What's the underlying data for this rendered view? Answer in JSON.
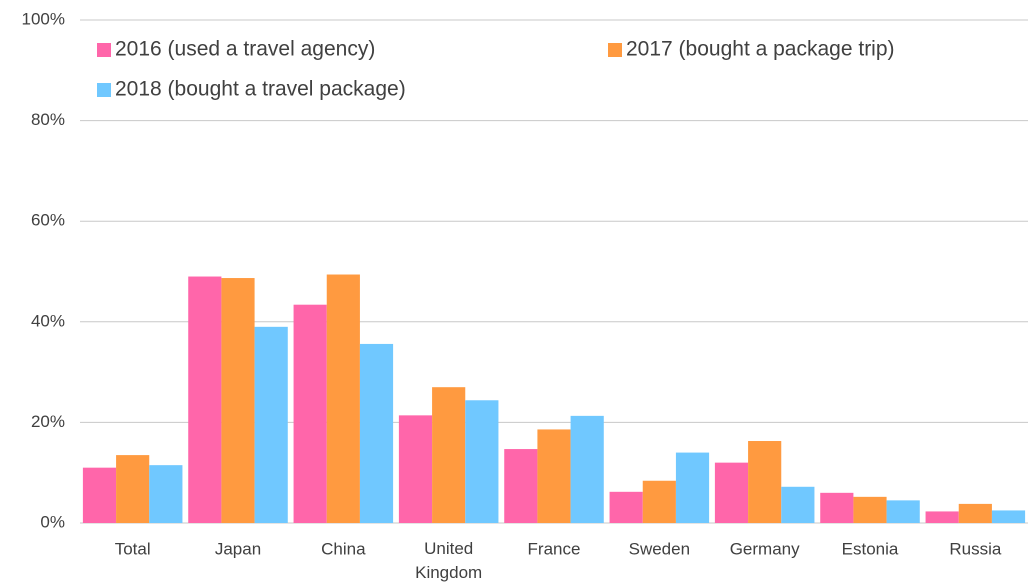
{
  "chart_data": {
    "type": "bar",
    "categories": [
      "Total",
      "Japan",
      "China",
      "United Kingdom",
      "France",
      "Sweden",
      "Germany",
      "Estonia",
      "Russia"
    ],
    "series": [
      {
        "name": "2016 (used a travel agency)",
        "color": "#ff66aa",
        "values": [
          11,
          49,
          43.4,
          21.4,
          14.7,
          6.2,
          12,
          6,
          2.3
        ]
      },
      {
        "name": "2017 (bought a package trip)",
        "color": "#ff9a40",
        "values": [
          13.5,
          48.7,
          49.4,
          27,
          18.6,
          8.4,
          16.3,
          5.2,
          3.8
        ]
      },
      {
        "name": "2018 (bought a travel package)",
        "color": "#70c8ff",
        "values": [
          11.5,
          39,
          35.6,
          24.4,
          21.3,
          14,
          7.2,
          4.5,
          2.5
        ]
      }
    ],
    "ylim": [
      0,
      100
    ],
    "yticks": [
      {
        "value": 0,
        "label": "0%"
      },
      {
        "value": 20,
        "label": "20%"
      },
      {
        "value": 40,
        "label": "40%"
      },
      {
        "value": 60,
        "label": "60%"
      },
      {
        "value": 80,
        "label": "80%"
      },
      {
        "value": 100,
        "label": "100%"
      }
    ],
    "grid": true,
    "legend": "top-left"
  }
}
